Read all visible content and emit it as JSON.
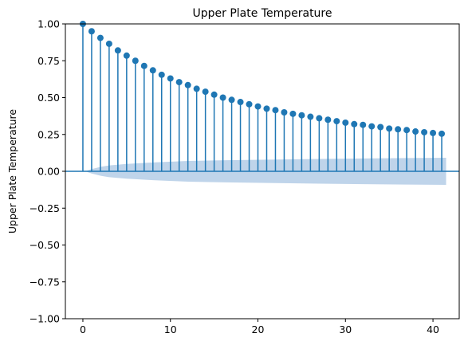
{
  "chart_data": {
    "type": "stem",
    "title": "Upper Plate Temperature",
    "xlabel": "",
    "ylabel": "Upper Plate Temperature",
    "xlim": [
      -2,
      43
    ],
    "ylim": [
      -1.0,
      1.0
    ],
    "xticks": [
      0,
      10,
      20,
      30,
      40
    ],
    "yticks": [
      -1.0,
      -0.75,
      -0.5,
      -0.25,
      0.0,
      0.25,
      0.5,
      0.75,
      1.0
    ],
    "ytick_labels": [
      "−1.00",
      "−0.75",
      "−0.50",
      "−0.25",
      "0.00",
      "0.25",
      "0.50",
      "0.75",
      "1.00"
    ],
    "grid": false,
    "lags": [
      0,
      1,
      2,
      3,
      4,
      5,
      6,
      7,
      8,
      9,
      10,
      11,
      12,
      13,
      14,
      15,
      16,
      17,
      18,
      19,
      20,
      21,
      22,
      23,
      24,
      25,
      26,
      27,
      28,
      29,
      30,
      31,
      32,
      33,
      34,
      35,
      36,
      37,
      38,
      39,
      40,
      41
    ],
    "acf": [
      1.0,
      0.95,
      0.905,
      0.865,
      0.82,
      0.785,
      0.75,
      0.715,
      0.685,
      0.655,
      0.63,
      0.605,
      0.585,
      0.56,
      0.54,
      0.52,
      0.5,
      0.485,
      0.47,
      0.455,
      0.44,
      0.425,
      0.415,
      0.4,
      0.39,
      0.38,
      0.37,
      0.36,
      0.35,
      0.34,
      0.33,
      0.32,
      0.315,
      0.305,
      0.3,
      0.29,
      0.285,
      0.28,
      0.27,
      0.265,
      0.26,
      0.255
    ],
    "confidence_band": {
      "x": [
        0.5,
        1,
        2,
        3,
        5,
        8,
        12,
        17,
        22,
        27,
        32,
        37,
        41.5
      ],
      "upper": [
        0.005,
        0.015,
        0.03,
        0.04,
        0.05,
        0.06,
        0.07,
        0.076,
        0.08,
        0.084,
        0.087,
        0.09,
        0.092
      ],
      "lower": [
        -0.005,
        -0.015,
        -0.03,
        -0.04,
        -0.05,
        -0.06,
        -0.07,
        -0.076,
        -0.08,
        -0.084,
        -0.087,
        -0.09,
        -0.092
      ]
    },
    "colors": {
      "stem": "#1f77b4",
      "marker": "#1f77b4",
      "band": "#b4cde6",
      "zero_line": "#1f77b4",
      "axes": "#000000"
    }
  }
}
